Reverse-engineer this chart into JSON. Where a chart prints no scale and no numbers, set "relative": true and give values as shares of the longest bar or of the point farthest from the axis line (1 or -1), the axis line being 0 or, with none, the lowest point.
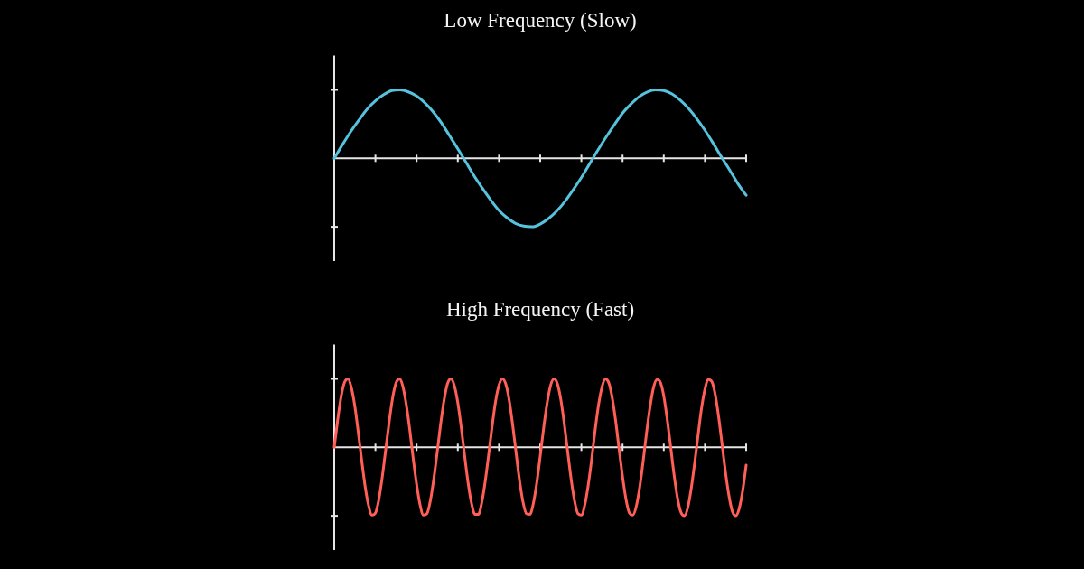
{
  "chart_data": [
    {
      "type": "line",
      "title": "Low Frequency (Slow)",
      "relative": true,
      "color": "#56c3de",
      "categories": [
        null,
        null,
        null,
        null,
        null,
        null,
        null,
        null,
        null,
        null,
        null,
        null,
        null,
        null,
        null,
        null,
        null,
        null,
        null,
        null,
        null,
        null,
        null,
        null,
        null,
        null,
        null,
        null,
        null,
        null,
        null,
        null,
        null,
        null,
        null,
        null,
        null,
        null,
        null,
        null,
        null,
        null,
        null,
        null,
        null,
        null,
        null,
        null,
        null,
        null,
        null
      ],
      "values": [
        0,
        0.2,
        0.39,
        0.56,
        0.72,
        0.84,
        0.93,
        0.99,
        1.0,
        0.97,
        0.91,
        0.81,
        0.68,
        0.52,
        0.33,
        0.14,
        -0.06,
        -0.26,
        -0.44,
        -0.61,
        -0.76,
        -0.87,
        -0.95,
        -0.99,
        -1.0,
        -0.96,
        -0.88,
        -0.77,
        -0.63,
        -0.46,
        -0.28,
        -0.08,
        0.12,
        0.31,
        0.49,
        0.66,
        0.79,
        0.9,
        0.97,
        1.0,
        0.99,
        0.94,
        0.85,
        0.73,
        0.58,
        0.41,
        0.22,
        0.02,
        -0.17,
        -0.37,
        -0.54
      ]
    },
    {
      "type": "line",
      "title": "High Frequency (Fast)",
      "relative": true,
      "color": "#ff5f57",
      "categories": [
        null,
        null,
        null,
        null,
        null,
        null,
        null,
        null,
        null,
        null,
        null,
        null,
        null,
        null,
        null,
        null,
        null,
        null,
        null,
        null,
        null,
        null,
        null,
        null,
        null,
        null,
        null,
        null,
        null,
        null,
        null,
        null,
        null,
        null,
        null,
        null,
        null,
        null,
        null,
        null,
        null,
        null,
        null,
        null,
        null,
        null,
        null,
        null,
        null,
        null,
        null,
        null,
        null,
        null,
        null,
        null,
        null,
        null,
        null,
        null,
        null,
        null,
        null,
        null,
        null,
        null,
        null,
        null,
        null,
        null,
        null,
        null,
        null,
        null,
        null,
        null,
        null,
        null,
        null,
        null,
        null,
        null,
        null,
        null,
        null,
        null,
        null,
        null,
        null,
        null,
        null,
        null,
        null,
        null,
        null,
        null,
        null,
        null,
        null,
        null,
        null,
        null,
        null,
        null,
        null,
        null,
        null,
        null,
        null,
        null,
        null,
        null,
        null,
        null,
        null,
        null,
        null,
        null,
        null,
        null,
        null
      ],
      "values": [
        0,
        0.4,
        0.74,
        0.95,
        1.0,
        0.87,
        0.6,
        0.22,
        -0.19,
        -0.57,
        -0.85,
        -0.99,
        -0.96,
        -0.76,
        -0.43,
        -0.03,
        0.37,
        0.72,
        0.94,
        1.0,
        0.89,
        0.62,
        0.26,
        -0.16,
        -0.54,
        -0.84,
        -0.99,
        -0.97,
        -0.78,
        -0.46,
        -0.07,
        0.34,
        0.69,
        0.93,
        1.0,
        0.9,
        0.65,
        0.29,
        -0.13,
        -0.52,
        -0.82,
        -0.98,
        -0.98,
        -0.8,
        -0.49,
        -0.1,
        0.31,
        0.67,
        0.91,
        1.0,
        0.92,
        0.68,
        0.32,
        -0.09,
        -0.49,
        -0.8,
        -0.97,
        -0.98,
        -0.82,
        -0.52,
        -0.13,
        0.28,
        0.64,
        0.9,
        1.0,
        0.93,
        0.7,
        0.35,
        -0.06,
        -0.46,
        -0.78,
        -0.97,
        -0.99,
        -0.84,
        -0.55,
        -0.17,
        0.25,
        0.62,
        0.88,
        1.0,
        0.94,
        0.72,
        0.38,
        -0.03,
        -0.43,
        -0.76,
        -0.96,
        -0.99,
        -0.86,
        -0.58,
        -0.2,
        0.22,
        0.59,
        0.87,
        0.99,
        0.95,
        0.75,
        0.41,
        0.01,
        -0.4,
        -0.74,
        -0.95,
        -1.0,
        -0.88,
        -0.6,
        -0.23,
        0.18,
        0.57,
        0.85,
        0.99,
        0.96,
        0.77,
        0.44,
        0.04,
        -0.37,
        -0.71,
        -0.94,
        -1.0,
        -0.89,
        -0.63,
        -0.26
      ]
    }
  ]
}
